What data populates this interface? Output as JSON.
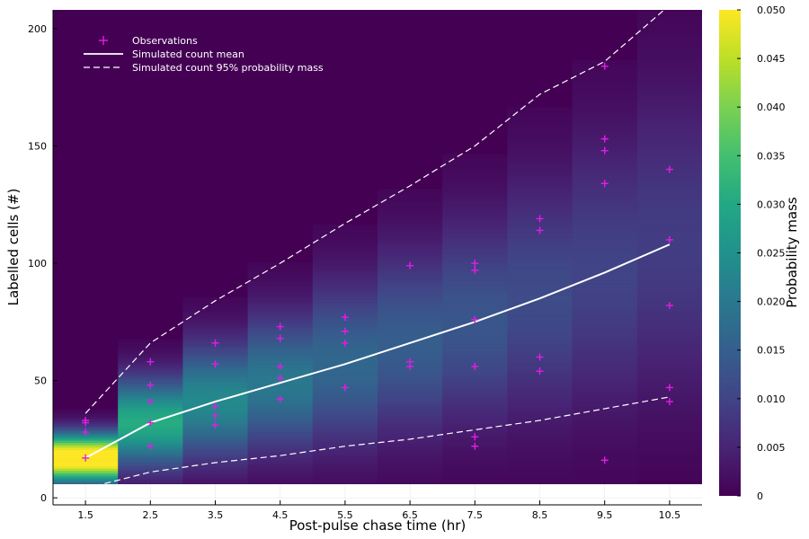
{
  "chart_data": {
    "type": "heatmap",
    "xlabel": "Post-pulse chase time (hr)",
    "ylabel": "Labelled cells (#)",
    "colorbar_label": "Probability mass",
    "xlim": [
      1,
      11
    ],
    "ylim": [
      -3,
      208
    ],
    "x_ticks": [
      "1.5",
      "2.5",
      "3.5",
      "4.5",
      "5.5",
      "6.5",
      "7.5",
      "8.5",
      "9.5",
      "10.5"
    ],
    "y_ticks": [
      "0",
      "50",
      "100",
      "150",
      "200"
    ],
    "colorbar": {
      "min": 0,
      "max": 0.05,
      "ticks": [
        "0",
        "0.005",
        "0.010",
        "0.015",
        "0.020",
        "0.025",
        "0.030",
        "0.035",
        "0.040",
        "0.045",
        "0.050"
      ],
      "colormap": "viridis"
    },
    "heatmap_columns": [
      {
        "x": 1.5,
        "mean": 17,
        "sd": 7
      },
      {
        "x": 2.5,
        "mean": 32,
        "sd": 13
      },
      {
        "x": 3.5,
        "mean": 41,
        "sd": 17
      },
      {
        "x": 4.5,
        "mean": 49,
        "sd": 20
      },
      {
        "x": 5.5,
        "mean": 57,
        "sd": 24
      },
      {
        "x": 6.5,
        "mean": 66,
        "sd": 27
      },
      {
        "x": 7.5,
        "mean": 75,
        "sd": 30
      },
      {
        "x": 8.5,
        "mean": 85,
        "sd": 35
      },
      {
        "x": 9.5,
        "mean": 96,
        "sd": 40
      },
      {
        "x": 10.5,
        "mean": 108,
        "sd": 45
      }
    ],
    "series": [
      {
        "name": "Observations",
        "type": "scatter",
        "color": "#e41ce4",
        "points": [
          [
            1.5,
            33
          ],
          [
            1.5,
            32
          ],
          [
            1.5,
            28
          ],
          [
            1.5,
            17
          ],
          [
            2.5,
            58
          ],
          [
            2.5,
            48
          ],
          [
            2.5,
            41
          ],
          [
            2.5,
            32
          ],
          [
            2.5,
            22
          ],
          [
            3.5,
            66
          ],
          [
            3.5,
            57
          ],
          [
            3.5,
            39
          ],
          [
            3.5,
            35
          ],
          [
            3.5,
            31
          ],
          [
            4.5,
            73
          ],
          [
            4.5,
            68
          ],
          [
            4.5,
            56
          ],
          [
            4.5,
            51
          ],
          [
            4.5,
            42
          ],
          [
            5.5,
            77
          ],
          [
            5.5,
            71
          ],
          [
            5.5,
            66
          ],
          [
            5.5,
            47
          ],
          [
            6.5,
            99
          ],
          [
            6.5,
            58
          ],
          [
            6.5,
            56
          ],
          [
            7.5,
            100
          ],
          [
            7.5,
            97
          ],
          [
            7.5,
            76
          ],
          [
            7.5,
            56
          ],
          [
            7.5,
            26
          ],
          [
            7.5,
            22
          ],
          [
            8.5,
            119
          ],
          [
            8.5,
            114
          ],
          [
            8.5,
            60
          ],
          [
            8.5,
            54
          ],
          [
            9.5,
            184
          ],
          [
            9.5,
            153
          ],
          [
            9.5,
            148
          ],
          [
            9.5,
            134
          ],
          [
            9.5,
            16
          ],
          [
            10.5,
            140
          ],
          [
            10.5,
            110
          ],
          [
            10.5,
            82
          ],
          [
            10.5,
            47
          ],
          [
            10.5,
            41
          ]
        ]
      },
      {
        "name": "Simulated count mean",
        "type": "line",
        "color": "#ffffff",
        "x": [
          1.5,
          2.5,
          3.5,
          4.5,
          5.5,
          6.5,
          7.5,
          8.5,
          9.5,
          10.5
        ],
        "values": [
          17,
          32,
          41,
          49,
          57,
          66,
          75,
          85,
          96,
          108
        ]
      },
      {
        "name": "Simulated count 95% probability mass",
        "type": "line",
        "style": "dashed",
        "color": "#ffffff",
        "x": [
          1.5,
          2.5,
          3.5,
          4.5,
          5.5,
          6.5,
          7.5,
          8.5,
          9.5,
          10.5
        ],
        "upper": [
          36,
          66,
          84,
          100,
          117,
          133,
          150,
          172,
          186,
          210
        ],
        "lower": [
          4,
          11,
          15,
          18,
          22,
          25,
          29,
          33,
          38,
          43
        ]
      }
    ]
  }
}
